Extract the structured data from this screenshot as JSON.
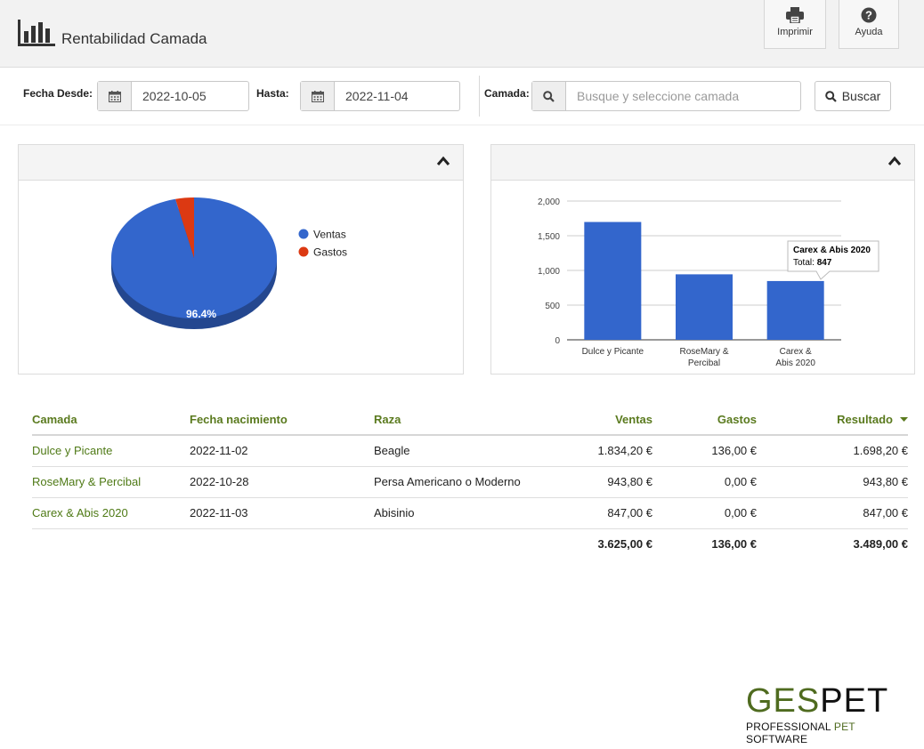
{
  "header": {
    "title": "Rentabilidad Camada",
    "print_label": "Imprimir",
    "help_label": "Ayuda"
  },
  "filters": {
    "from_label": "Fecha Desde:",
    "from_value": "2022-10-05",
    "to_label": "Hasta:",
    "to_value": "2022-11-04",
    "litter_label": "Camada:",
    "litter_placeholder": "Busque y seleccione camada",
    "search_label": "Buscar"
  },
  "pie_chart": {
    "type": "pie",
    "slices": [
      {
        "name": "Ventas",
        "value": 3625.0,
        "color": "#3366cc"
      },
      {
        "name": "Gastos",
        "value": 136.0,
        "color": "#dc3912"
      }
    ],
    "label": "96.4%"
  },
  "chart_data": {
    "type": "bar",
    "categories": [
      "Dulce y Picante",
      "RoseMary & Percibal",
      "Carex & Abis 2020"
    ],
    "values": [
      1698.2,
      943.8,
      847.0
    ],
    "ylim": [
      0,
      2000
    ],
    "yticks": [
      "0",
      "500",
      "1,000",
      "1,500",
      "2,000"
    ],
    "color": "#3366cc",
    "tooltip": {
      "title": "Carex & Abis 2020",
      "label": "Total:",
      "value": "847"
    }
  },
  "table": {
    "headers": [
      "Camada",
      "Fecha nacimiento",
      "Raza",
      "Ventas",
      "Gastos",
      "Resultado"
    ],
    "rows": [
      [
        "Dulce y Picante",
        "2022-11-02",
        "Beagle",
        "1.834,20 €",
        "136,00 €",
        "1.698,20 €"
      ],
      [
        "RoseMary & Percibal",
        "2022-10-28",
        "Persa Americano o Moderno",
        "943,80 €",
        "0,00 €",
        "943,80 €"
      ],
      [
        "Carex & Abis 2020",
        "2022-11-03",
        "Abisinio",
        "847,00 €",
        "0,00 €",
        "847,00 €"
      ]
    ],
    "totals": [
      "3.625,00 €",
      "136,00 €",
      "3.489,00 €"
    ]
  },
  "brand": {
    "name_part1": "GES",
    "name_part2": "PET",
    "tagline_part1": "PROFESSIONAL ",
    "tagline_part2": "PET",
    "tagline_part3": " SOFTWARE"
  }
}
